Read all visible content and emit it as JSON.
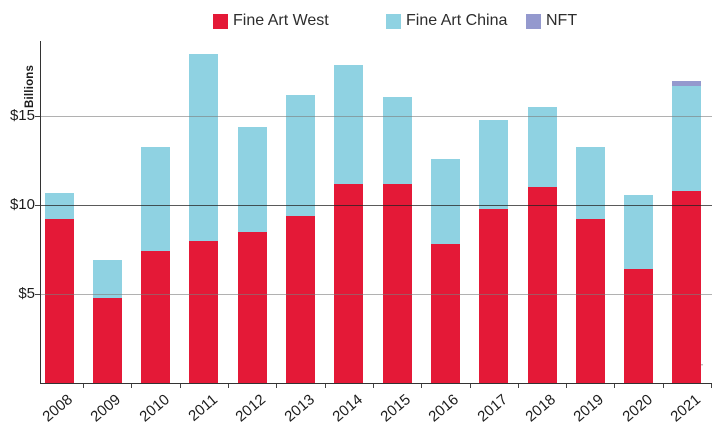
{
  "legend": [
    {
      "label": "Fine Art West",
      "color": "#e41937"
    },
    {
      "label": "Fine Art China",
      "color": "#8fd2e2"
    },
    {
      "label": "NFT",
      "color": "#9499ce"
    }
  ],
  "watermark": "©artprice.com / ©AMMA",
  "chart_data": {
    "type": "bar",
    "stacked": true,
    "title": "",
    "xlabel": "",
    "ylabel": "Billions",
    "legend_position": "top",
    "grid": true,
    "ylim": [
      0,
      19
    ],
    "y_ticks": [
      "$5",
      "$10",
      "$15"
    ],
    "y_tick_values": [
      5,
      10,
      15
    ],
    "categories": [
      2008,
      2009,
      2010,
      2011,
      2012,
      2013,
      2014,
      2015,
      2016,
      2017,
      2018,
      2019,
      2020,
      2021
    ],
    "series": [
      {
        "name": "Fine Art West",
        "color": "#e41937",
        "values": [
          9.2,
          4.8,
          7.4,
          8.0,
          8.5,
          9.4,
          11.2,
          11.2,
          7.8,
          9.8,
          11.0,
          9.2,
          6.4,
          10.8
        ]
      },
      {
        "name": "Fine Art China",
        "color": "#8fd2e2",
        "values": [
          1.5,
          2.1,
          5.9,
          10.5,
          5.9,
          6.8,
          6.7,
          4.9,
          4.8,
          5.0,
          4.5,
          4.1,
          4.2,
          5.9
        ]
      },
      {
        "name": "NFT",
        "color": "#9499ce",
        "values": [
          0,
          0,
          0,
          0,
          0,
          0,
          0,
          0,
          0,
          0,
          0,
          0,
          0,
          0.3
        ]
      }
    ]
  }
}
